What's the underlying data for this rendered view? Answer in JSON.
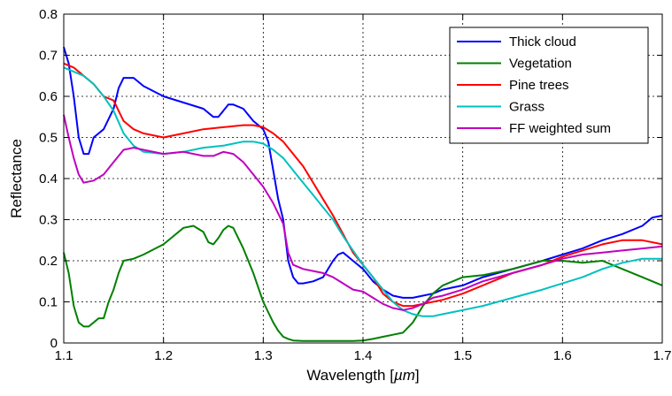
{
  "chart_data": {
    "type": "line",
    "xlabel_prefix": "Wavelength [",
    "xlabel_unit": "µm",
    "xlabel_suffix": "]",
    "ylabel": "Reflectance",
    "xlim": [
      1.1,
      1.7
    ],
    "ylim": [
      0,
      0.8
    ],
    "x_ticks": [
      1.1,
      1.2,
      1.3,
      1.4,
      1.5,
      1.6,
      1.7
    ],
    "x_tick_labels": [
      "1.1",
      "1.2",
      "1.3",
      "1.4",
      "1.5",
      "1.6",
      "1.7"
    ],
    "y_ticks": [
      0,
      0.1,
      0.2,
      0.3,
      0.4,
      0.5,
      0.6,
      0.7,
      0.8
    ],
    "y_tick_labels": [
      "0",
      "0.1",
      "0.2",
      "0.3",
      "0.4",
      "0.5",
      "0.6",
      "0.7",
      "0.8"
    ],
    "grid": true,
    "legend_position": "top-right",
    "series": [
      {
        "name": "Thick cloud",
        "color": "#0000ff",
        "x": [
          1.1,
          1.105,
          1.11,
          1.115,
          1.12,
          1.125,
          1.13,
          1.14,
          1.15,
          1.155,
          1.16,
          1.17,
          1.18,
          1.2,
          1.22,
          1.24,
          1.25,
          1.255,
          1.26,
          1.265,
          1.27,
          1.28,
          1.29,
          1.3,
          1.305,
          1.31,
          1.315,
          1.32,
          1.325,
          1.33,
          1.335,
          1.34,
          1.35,
          1.36,
          1.37,
          1.375,
          1.38,
          1.385,
          1.39,
          1.4,
          1.41,
          1.42,
          1.43,
          1.44,
          1.45,
          1.46,
          1.47,
          1.48,
          1.5,
          1.52,
          1.55,
          1.58,
          1.6,
          1.62,
          1.64,
          1.66,
          1.68,
          1.69,
          1.7
        ],
        "y": [
          0.72,
          0.68,
          0.6,
          0.5,
          0.46,
          0.46,
          0.5,
          0.52,
          0.57,
          0.62,
          0.645,
          0.645,
          0.625,
          0.6,
          0.585,
          0.57,
          0.55,
          0.55,
          0.565,
          0.58,
          0.58,
          0.57,
          0.54,
          0.52,
          0.49,
          0.42,
          0.35,
          0.3,
          0.2,
          0.16,
          0.145,
          0.145,
          0.15,
          0.16,
          0.2,
          0.215,
          0.22,
          0.21,
          0.2,
          0.18,
          0.15,
          0.13,
          0.115,
          0.11,
          0.11,
          0.115,
          0.12,
          0.13,
          0.14,
          0.16,
          0.18,
          0.2,
          0.215,
          0.23,
          0.25,
          0.265,
          0.285,
          0.305,
          0.31
        ]
      },
      {
        "name": "Vegetation",
        "color": "#008000",
        "x": [
          1.1,
          1.105,
          1.11,
          1.115,
          1.12,
          1.125,
          1.13,
          1.135,
          1.14,
          1.145,
          1.15,
          1.155,
          1.16,
          1.17,
          1.18,
          1.2,
          1.21,
          1.22,
          1.23,
          1.24,
          1.245,
          1.25,
          1.255,
          1.26,
          1.265,
          1.27,
          1.28,
          1.29,
          1.3,
          1.31,
          1.315,
          1.32,
          1.325,
          1.33,
          1.34,
          1.35,
          1.36,
          1.37,
          1.38,
          1.39,
          1.4,
          1.41,
          1.42,
          1.43,
          1.44,
          1.45,
          1.46,
          1.47,
          1.48,
          1.5,
          1.52,
          1.55,
          1.58,
          1.6,
          1.62,
          1.64,
          1.66,
          1.68,
          1.7
        ],
        "y": [
          0.22,
          0.17,
          0.09,
          0.05,
          0.04,
          0.04,
          0.05,
          0.06,
          0.06,
          0.1,
          0.13,
          0.17,
          0.2,
          0.205,
          0.215,
          0.24,
          0.26,
          0.28,
          0.285,
          0.27,
          0.245,
          0.24,
          0.255,
          0.275,
          0.285,
          0.28,
          0.23,
          0.17,
          0.1,
          0.05,
          0.03,
          0.015,
          0.01,
          0.006,
          0.005,
          0.005,
          0.005,
          0.005,
          0.005,
          0.005,
          0.006,
          0.01,
          0.015,
          0.02,
          0.025,
          0.05,
          0.09,
          0.12,
          0.14,
          0.16,
          0.165,
          0.18,
          0.2,
          0.2,
          0.195,
          0.2,
          0.18,
          0.16,
          0.14
        ]
      },
      {
        "name": "Pine trees",
        "color": "#ff0000",
        "x": [
          1.1,
          1.11,
          1.12,
          1.13,
          1.14,
          1.15,
          1.16,
          1.17,
          1.18,
          1.2,
          1.22,
          1.24,
          1.26,
          1.28,
          1.29,
          1.3,
          1.31,
          1.32,
          1.33,
          1.34,
          1.35,
          1.36,
          1.37,
          1.38,
          1.39,
          1.4,
          1.41,
          1.42,
          1.43,
          1.44,
          1.45,
          1.46,
          1.47,
          1.48,
          1.5,
          1.52,
          1.55,
          1.58,
          1.6,
          1.62,
          1.64,
          1.66,
          1.68,
          1.7
        ],
        "y": [
          0.68,
          0.67,
          0.65,
          0.63,
          0.6,
          0.59,
          0.54,
          0.52,
          0.51,
          0.5,
          0.51,
          0.52,
          0.525,
          0.53,
          0.53,
          0.525,
          0.51,
          0.49,
          0.46,
          0.43,
          0.39,
          0.35,
          0.31,
          0.265,
          0.22,
          0.19,
          0.16,
          0.12,
          0.1,
          0.09,
          0.09,
          0.095,
          0.1,
          0.105,
          0.12,
          0.14,
          0.17,
          0.19,
          0.21,
          0.225,
          0.24,
          0.25,
          0.25,
          0.24
        ]
      },
      {
        "name": "Grass",
        "color": "#00c0c0",
        "x": [
          1.1,
          1.11,
          1.12,
          1.13,
          1.14,
          1.15,
          1.16,
          1.17,
          1.18,
          1.2,
          1.22,
          1.24,
          1.26,
          1.28,
          1.29,
          1.3,
          1.31,
          1.32,
          1.33,
          1.34,
          1.35,
          1.36,
          1.37,
          1.38,
          1.39,
          1.4,
          1.41,
          1.42,
          1.43,
          1.44,
          1.45,
          1.46,
          1.47,
          1.48,
          1.5,
          1.52,
          1.55,
          1.58,
          1.6,
          1.62,
          1.64,
          1.66,
          1.68,
          1.7
        ],
        "y": [
          0.67,
          0.66,
          0.65,
          0.63,
          0.6,
          0.565,
          0.51,
          0.48,
          0.465,
          0.46,
          0.465,
          0.475,
          0.48,
          0.49,
          0.49,
          0.485,
          0.47,
          0.45,
          0.42,
          0.39,
          0.36,
          0.33,
          0.3,
          0.26,
          0.225,
          0.19,
          0.16,
          0.13,
          0.1,
          0.08,
          0.07,
          0.065,
          0.065,
          0.07,
          0.08,
          0.09,
          0.11,
          0.13,
          0.145,
          0.16,
          0.18,
          0.195,
          0.205,
          0.205
        ]
      },
      {
        "name": "FF weighted sum",
        "color": "#c000c0",
        "x": [
          1.1,
          1.105,
          1.11,
          1.115,
          1.12,
          1.13,
          1.14,
          1.15,
          1.16,
          1.17,
          1.18,
          1.2,
          1.22,
          1.24,
          1.25,
          1.26,
          1.27,
          1.28,
          1.29,
          1.3,
          1.31,
          1.32,
          1.325,
          1.33,
          1.34,
          1.35,
          1.36,
          1.37,
          1.38,
          1.39,
          1.4,
          1.41,
          1.42,
          1.43,
          1.44,
          1.45,
          1.46,
          1.47,
          1.48,
          1.5,
          1.52,
          1.55,
          1.58,
          1.6,
          1.62,
          1.64,
          1.66,
          1.68,
          1.7
        ],
        "y": [
          0.555,
          0.5,
          0.45,
          0.41,
          0.39,
          0.395,
          0.41,
          0.44,
          0.47,
          0.475,
          0.47,
          0.46,
          0.465,
          0.455,
          0.455,
          0.465,
          0.46,
          0.44,
          0.41,
          0.38,
          0.34,
          0.29,
          0.22,
          0.19,
          0.18,
          0.175,
          0.17,
          0.16,
          0.145,
          0.13,
          0.125,
          0.11,
          0.095,
          0.085,
          0.08,
          0.085,
          0.095,
          0.11,
          0.115,
          0.13,
          0.15,
          0.17,
          0.19,
          0.205,
          0.215,
          0.22,
          0.225,
          0.23,
          0.235
        ]
      }
    ]
  }
}
